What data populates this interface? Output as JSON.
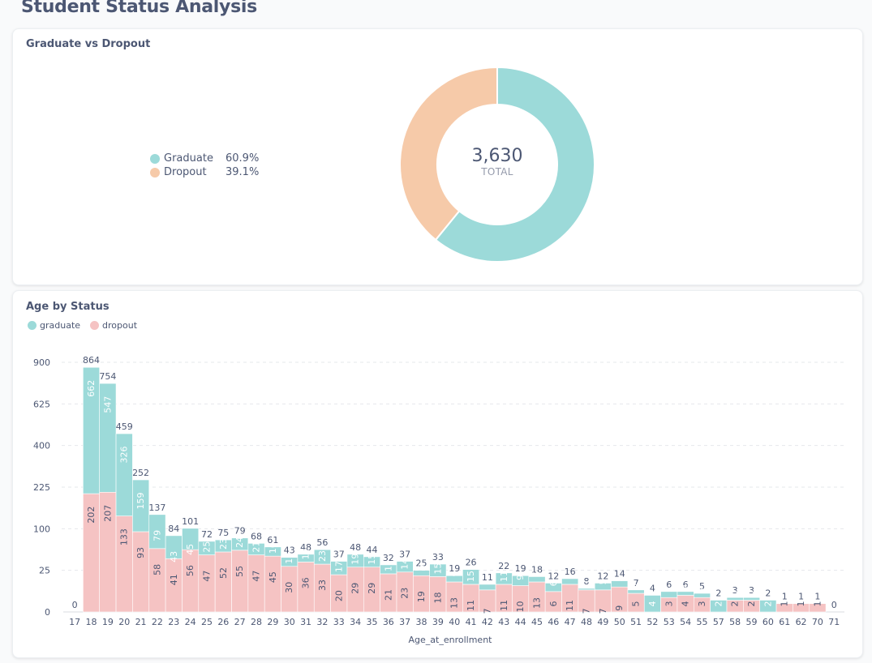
{
  "page_title": "Student Status Analysis",
  "donut_card": {
    "title": "Graduate vs Dropout",
    "legend": [
      {
        "name": "Graduate",
        "pct": "60.9%",
        "color": "#9cdad9"
      },
      {
        "name": "Dropout",
        "pct": "39.1%",
        "color": "#f6caa9"
      }
    ],
    "total_value": "3,630",
    "total_label": "TOTAL"
  },
  "bar_card": {
    "title": "Age by Status",
    "legend": [
      {
        "name": "graduate",
        "color": "#9cdad9"
      },
      {
        "name": "dropout",
        "color": "#f5c3c3"
      }
    ]
  },
  "chart_data": [
    {
      "type": "pie",
      "title": "Graduate vs Dropout",
      "labels": [
        "Graduate",
        "Dropout"
      ],
      "values": [
        60.9,
        39.1
      ],
      "total": 3630,
      "colors": [
        "#9cdad9",
        "#f6caa9"
      ]
    },
    {
      "type": "bar",
      "stacked": true,
      "title": "Age by Status",
      "xlabel": "Age_at_enrollment",
      "ylabel": "",
      "y_scale": "non-linear (ticks 0, 25, 100, 225, 400, 625, 900)",
      "yticks": [
        0,
        25,
        100,
        225,
        400,
        625,
        900
      ],
      "ylim": [
        0,
        900
      ],
      "legend_position": "top-left",
      "categories": [
        "17",
        "18",
        "19",
        "20",
        "21",
        "22",
        "23",
        "24",
        "25",
        "26",
        "27",
        "28",
        "29",
        "30",
        "31",
        "32",
        "33",
        "34",
        "35",
        "36",
        "37",
        "38",
        "39",
        "40",
        "41",
        "42",
        "43",
        "44",
        "45",
        "46",
        "47",
        "48",
        "49",
        "50",
        "51",
        "52",
        "53",
        "54",
        "55",
        "57",
        "58",
        "59",
        "60",
        "61",
        "62",
        "70",
        "71"
      ],
      "series": [
        {
          "name": "dropout",
          "color": "#f5c3c3",
          "values": [
            0,
            202,
            207,
            133,
            93,
            58,
            41,
            56,
            47,
            52,
            55,
            47,
            45,
            30,
            36,
            33,
            20,
            29,
            29,
            21,
            23,
            19,
            18,
            13,
            11,
            7,
            11,
            10,
            13,
            6,
            11,
            7,
            7,
            9,
            5,
            0,
            3,
            4,
            3,
            0,
            2,
            2,
            0,
            1,
            1,
            1,
            0
          ]
        },
        {
          "name": "graduate",
          "color": "#9cdad9",
          "values": [
            0,
            662,
            547,
            326,
            159,
            79,
            43,
            45,
            25,
            23,
            24,
            21,
            16,
            13,
            12,
            23,
            17,
            19,
            15,
            11,
            14,
            6,
            15,
            6,
            15,
            4,
            11,
            9,
            5,
            6,
            5,
            1,
            5,
            5,
            2,
            4,
            3,
            2,
            2,
            2,
            1,
            1,
            2,
            0,
            0,
            0,
            0
          ]
        }
      ],
      "totals": [
        0,
        864,
        754,
        459,
        252,
        137,
        84,
        101,
        72,
        75,
        79,
        68,
        61,
        43,
        48,
        56,
        37,
        48,
        44,
        32,
        37,
        25,
        33,
        19,
        26,
        11,
        22,
        19,
        18,
        12,
        16,
        8,
        12,
        14,
        7,
        4,
        6,
        6,
        5,
        2,
        3,
        3,
        2,
        1,
        1,
        1,
        0
      ]
    }
  ]
}
